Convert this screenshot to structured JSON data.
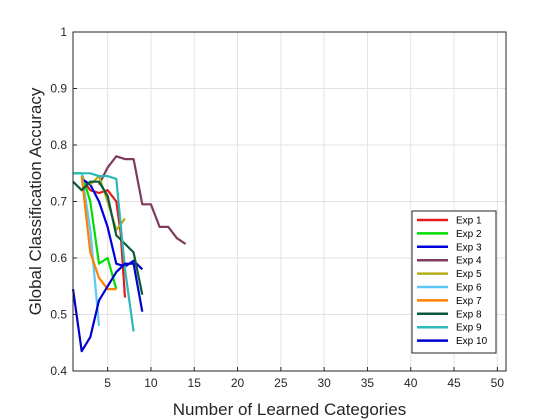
{
  "chart_data": {
    "type": "line",
    "xlabel": "Number of Learned Categories",
    "ylabel": "Global Classification Accuracy",
    "xlim": [
      1,
      51
    ],
    "ylim": [
      0.4,
      1.0
    ],
    "x_ticks": [
      5,
      10,
      15,
      20,
      25,
      30,
      35,
      40,
      45,
      50
    ],
    "y_ticks": [
      0.4,
      0.5,
      0.6,
      0.7,
      0.8,
      0.9,
      1.0
    ],
    "y_tick_labels": [
      "0.4",
      "0.5",
      "0.6",
      "0.7",
      "0.8",
      "0.9",
      "1"
    ],
    "grid": true,
    "legend_position": "bottom-right",
    "series": [
      {
        "name": "Exp 1",
        "color": "#e41a1c",
        "x": [
          2,
          3,
          4,
          5,
          6,
          6.5,
          7
        ],
        "y": [
          0.74,
          0.72,
          0.715,
          0.72,
          0.7,
          0.645,
          0.53
        ]
      },
      {
        "name": "Exp 2",
        "color": "#00dd00",
        "x": [
          1,
          2,
          3,
          4,
          5,
          6
        ],
        "y": [
          0.75,
          0.75,
          0.7,
          0.59,
          0.6,
          0.545
        ]
      },
      {
        "name": "Exp 3",
        "color": "#0000dd",
        "x": [
          2,
          3,
          4,
          5,
          6,
          7,
          8,
          9
        ],
        "y": [
          0.74,
          0.73,
          0.7,
          0.655,
          0.59,
          0.585,
          0.595,
          0.58
        ]
      },
      {
        "name": "Exp 4",
        "color": "#7e3b5f",
        "x": [
          4,
          5,
          6,
          7,
          8,
          9,
          10,
          11,
          12,
          13,
          14
        ],
        "y": [
          0.73,
          0.76,
          0.78,
          0.775,
          0.775,
          0.695,
          0.695,
          0.655,
          0.655,
          0.635,
          0.625
        ]
      },
      {
        "name": "Exp 5",
        "color": "#b5ad1b",
        "x": [
          3,
          4,
          5,
          6,
          7
        ],
        "y": [
          0.73,
          0.745,
          0.7,
          0.65,
          0.67
        ]
      },
      {
        "name": "Exp 6",
        "color": "#5bc8f5",
        "x": [
          2,
          3,
          4
        ],
        "y": [
          0.75,
          0.65,
          0.48
        ]
      },
      {
        "name": "Exp 7",
        "color": "#ff8000",
        "x": [
          2,
          3,
          4,
          5,
          6
        ],
        "y": [
          0.745,
          0.61,
          0.565,
          0.545,
          0.545
        ]
      },
      {
        "name": "Exp 8",
        "color": "#0a5a3a",
        "x": [
          1,
          2,
          3,
          4,
          5,
          6,
          7,
          8,
          9
        ],
        "y": [
          0.735,
          0.72,
          0.735,
          0.735,
          0.71,
          0.64,
          0.625,
          0.61,
          0.535
        ]
      },
      {
        "name": "Exp 9",
        "color": "#2ab8b8",
        "x": [
          1,
          2,
          3,
          4,
          5,
          6,
          7,
          8
        ],
        "y": [
          0.75,
          0.75,
          0.75,
          0.745,
          0.745,
          0.74,
          0.58,
          0.47
        ]
      },
      {
        "name": "Exp 10",
        "color": "#0000cc",
        "x": [
          1,
          2,
          3,
          4,
          5,
          6,
          7,
          8,
          9
        ],
        "y": [
          0.545,
          0.435,
          0.46,
          0.525,
          0.55,
          0.575,
          0.59,
          0.59,
          0.505
        ]
      }
    ]
  }
}
